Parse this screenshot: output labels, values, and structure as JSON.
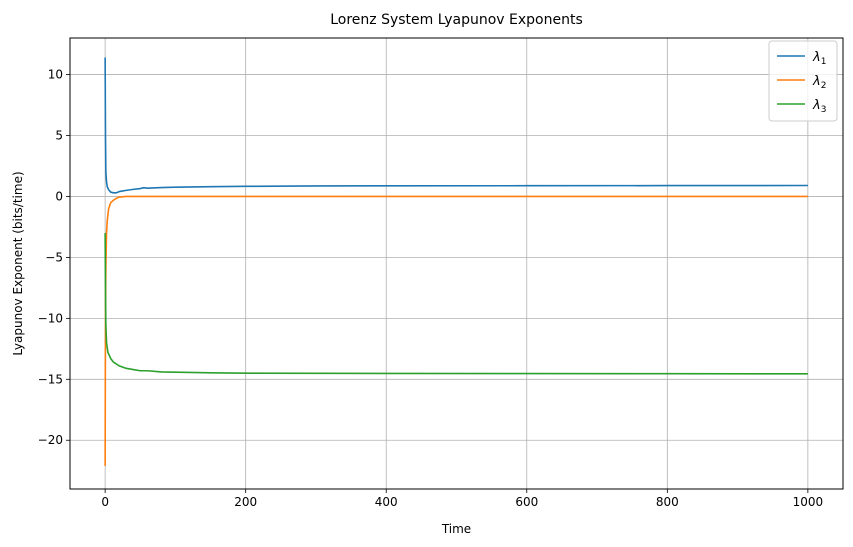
{
  "chart_data": {
    "type": "line",
    "title": "Lorenz System Lyapunov Exponents",
    "xlabel": "Time",
    "ylabel": "Lyapunov Exponent (bits/time)",
    "xlim": [
      -50,
      1050
    ],
    "ylim": [
      -24,
      13
    ],
    "xticks": [
      0,
      200,
      400,
      600,
      800,
      1000
    ],
    "yticks": [
      10,
      5,
      0,
      -5,
      -10,
      -15,
      -20
    ],
    "x_tick_labels": [
      "0",
      "200",
      "400",
      "600",
      "800",
      "1000"
    ],
    "y_tick_labels": [
      "10",
      "5",
      "0",
      "−5",
      "−10",
      "−15",
      "−20"
    ],
    "grid": true,
    "legend_position": "top-right",
    "series": [
      {
        "name": "λ1",
        "legend_symbol": "λ",
        "legend_subscript": "1",
        "color": "#1f77b4",
        "points": [
          [
            0,
            11.4
          ],
          [
            0.5,
            5.0
          ],
          [
            1,
            2.0
          ],
          [
            2,
            1.2
          ],
          [
            3,
            0.8
          ],
          [
            5,
            0.55
          ],
          [
            8,
            0.35
          ],
          [
            12,
            0.3
          ],
          [
            16,
            0.3
          ],
          [
            20,
            0.4
          ],
          [
            25,
            0.45
          ],
          [
            30,
            0.5
          ],
          [
            40,
            0.58
          ],
          [
            50,
            0.65
          ],
          [
            55,
            0.72
          ],
          [
            60,
            0.68
          ],
          [
            80,
            0.73
          ],
          [
            100,
            0.76
          ],
          [
            150,
            0.8
          ],
          [
            200,
            0.83
          ],
          [
            300,
            0.86
          ],
          [
            400,
            0.87
          ],
          [
            600,
            0.88
          ],
          [
            800,
            0.89
          ],
          [
            1000,
            0.9
          ]
        ]
      },
      {
        "name": "λ2",
        "legend_symbol": "λ",
        "legend_subscript": "2",
        "color": "#ff7f0e",
        "points": [
          [
            0,
            -22.1
          ],
          [
            0.3,
            -14.0
          ],
          [
            0.7,
            -8.0
          ],
          [
            1,
            -6.0
          ],
          [
            2,
            -3.0
          ],
          [
            3,
            -2.0
          ],
          [
            5,
            -1.0
          ],
          [
            8,
            -0.5
          ],
          [
            12,
            -0.3
          ],
          [
            16,
            -0.15
          ],
          [
            20,
            -0.05
          ],
          [
            30,
            0.0
          ],
          [
            50,
            0.0
          ],
          [
            100,
            0.0
          ],
          [
            1000,
            0.0
          ]
        ]
      },
      {
        "name": "λ3",
        "legend_symbol": "λ",
        "legend_subscript": "3",
        "color": "#2ca02c",
        "points": [
          [
            0,
            -3.0
          ],
          [
            0.3,
            -6.0
          ],
          [
            0.7,
            -9.0
          ],
          [
            1,
            -10.5
          ],
          [
            2,
            -12.0
          ],
          [
            4,
            -12.8
          ],
          [
            8,
            -13.3
          ],
          [
            12,
            -13.6
          ],
          [
            20,
            -13.9
          ],
          [
            30,
            -14.1
          ],
          [
            40,
            -14.2
          ],
          [
            50,
            -14.3
          ],
          [
            60,
            -14.3
          ],
          [
            80,
            -14.4
          ],
          [
            100,
            -14.42
          ],
          [
            150,
            -14.47
          ],
          [
            200,
            -14.5
          ],
          [
            400,
            -14.52
          ],
          [
            600,
            -14.53
          ],
          [
            800,
            -14.54
          ],
          [
            1000,
            -14.55
          ]
        ]
      }
    ]
  }
}
